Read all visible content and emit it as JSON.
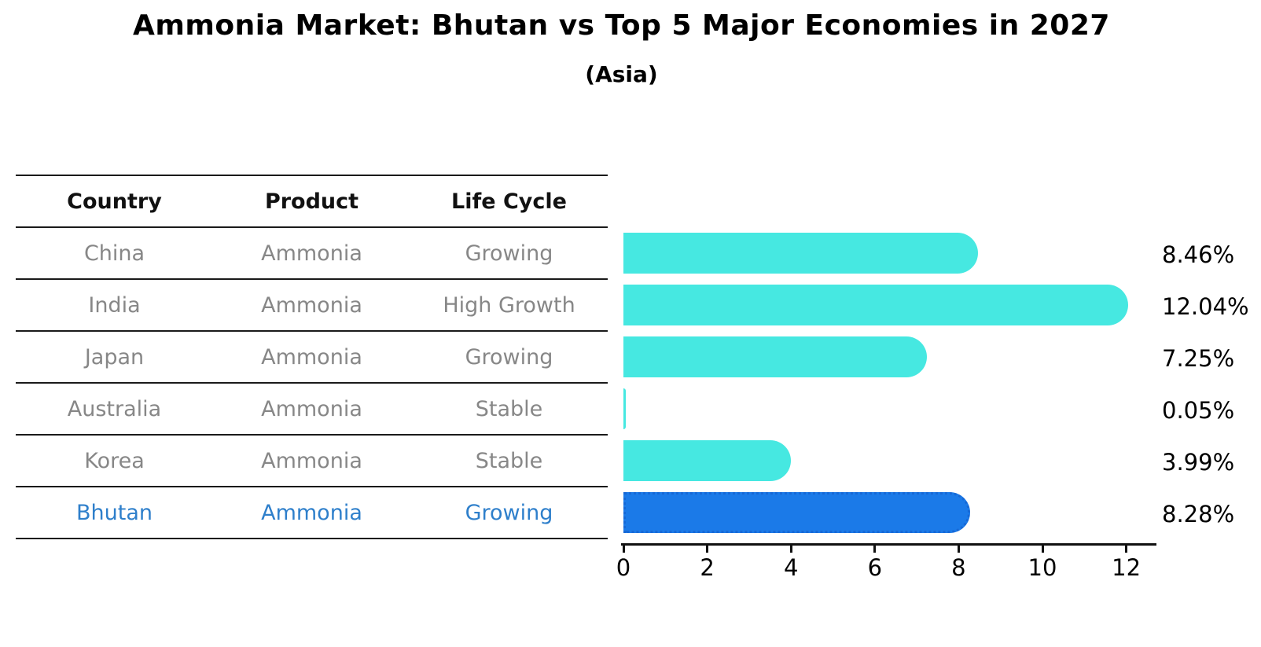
{
  "title": "Ammonia Market: Bhutan vs Top 5 Major Economies in 2027",
  "subtitle": "(Asia)",
  "table": {
    "headers": [
      "Country",
      "Product",
      "Life Cycle"
    ],
    "rows": [
      {
        "country": "China",
        "product": "Ammonia",
        "life_cycle": "Growing",
        "highlighted": false
      },
      {
        "country": "India",
        "product": "Ammonia",
        "life_cycle": "High Growth",
        "highlighted": false
      },
      {
        "country": "Japan",
        "product": "Ammonia",
        "life_cycle": "Growing",
        "highlighted": false
      },
      {
        "country": "Australia",
        "product": "Ammonia",
        "life_cycle": "Stable",
        "highlighted": false
      },
      {
        "country": "Korea",
        "product": "Ammonia",
        "life_cycle": "Stable",
        "highlighted": false
      },
      {
        "country": "Bhutan",
        "product": "Ammonia",
        "life_cycle": "Growing",
        "highlighted": true
      }
    ]
  },
  "chart_data": {
    "type": "bar",
    "orientation": "horizontal",
    "title": "Ammonia Market: Bhutan vs Top 5 Major Economies in 2027",
    "subtitle": "(Asia)",
    "categories": [
      "China",
      "India",
      "Japan",
      "Australia",
      "Korea",
      "Bhutan"
    ],
    "values": [
      8.46,
      12.04,
      7.25,
      0.05,
      3.99,
      8.28
    ],
    "value_labels": [
      "8.46%",
      "12.04%",
      "7.25%",
      "0.05%",
      "3.99%",
      "8.28%"
    ],
    "x_ticks": [
      0,
      2,
      4,
      6,
      8,
      10,
      12
    ],
    "xlim": [
      0,
      12.7
    ],
    "grid": false,
    "legend": "none",
    "highlight_category": "Bhutan",
    "bar_color": "#46E8E1",
    "highlight_bar_color": "#1B7AE8",
    "highlight_border_color": "#1668D6",
    "highlight_text_color": "#2E7FCB"
  },
  "colors": {
    "background": "#FFFFFF",
    "table_line": "#1A1A1A",
    "header_text": "#111111",
    "body_text": "#878787",
    "axis": "#111111"
  }
}
